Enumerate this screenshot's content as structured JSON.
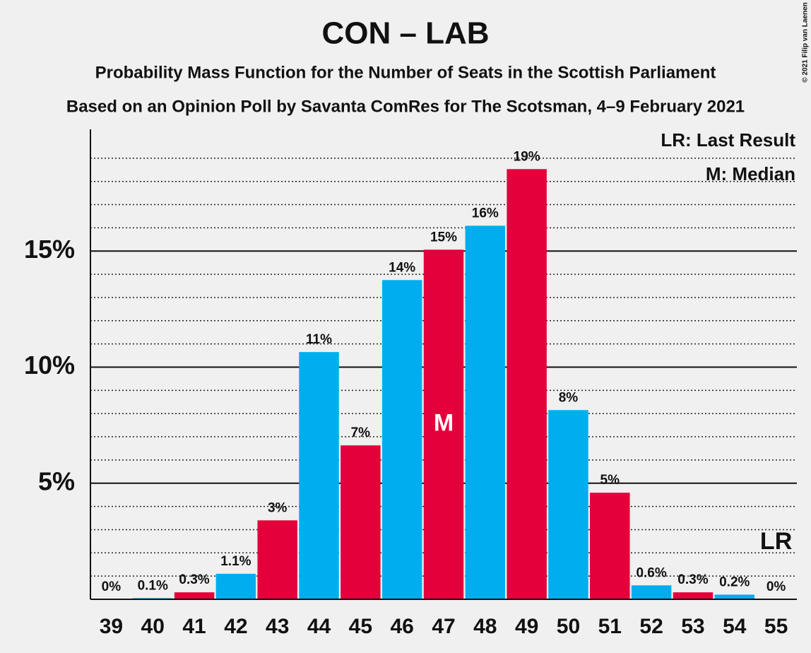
{
  "chart_data": {
    "type": "bar",
    "title": "CON – LAB",
    "subtitle": "Probability Mass Function for the Number of Seats in the Scottish Parliament",
    "subtitle2": "Based on an Opinion Poll by Savanta ComRes for The Scotsman, 4–9 February 2021",
    "copyright": "© 2021 Filip van Laenen",
    "legend_lr": "LR: Last Result",
    "legend_m": "M: Median",
    "categories": [
      "39",
      "40",
      "41",
      "42",
      "43",
      "44",
      "45",
      "46",
      "47",
      "48",
      "49",
      "50",
      "51",
      "52",
      "53",
      "54",
      "55"
    ],
    "values": [
      0,
      0.05,
      0.3,
      1.1,
      3.4,
      10.65,
      6.63,
      13.75,
      15.06,
      16.09,
      18.53,
      8.15,
      4.59,
      0.6,
      0.3,
      0.2,
      0
    ],
    "value_labels": [
      "0%",
      "0.1%",
      "0.3%",
      "1.1%",
      "3%",
      "11%",
      "7%",
      "14%",
      "15%",
      "16%",
      "19%",
      "8%",
      "5%",
      "0.6%",
      "0.3%",
      "0.2%",
      "0%"
    ],
    "colors": [
      "#e4003b",
      "#00aeef",
      "#e4003b",
      "#00aeef",
      "#e4003b",
      "#00aeef",
      "#e4003b",
      "#00aeef",
      "#e4003b",
      "#00aeef",
      "#e4003b",
      "#00aeef",
      "#e4003b",
      "#00aeef",
      "#e4003b",
      "#00aeef",
      "#e4003b"
    ],
    "median": {
      "index": 8,
      "label": "M"
    },
    "last_result": {
      "index": 16,
      "label": "LR"
    },
    "ylim": [
      0,
      20
    ],
    "yticks": [
      {
        "value": 5,
        "label": "5%"
      },
      {
        "value": 10,
        "label": "10%"
      },
      {
        "value": 15,
        "label": "15%"
      }
    ],
    "minor_yticks": [
      1,
      2,
      3,
      4,
      6,
      7,
      8,
      9,
      11,
      12,
      13,
      14,
      16,
      17,
      18,
      19
    ],
    "grid": true
  }
}
